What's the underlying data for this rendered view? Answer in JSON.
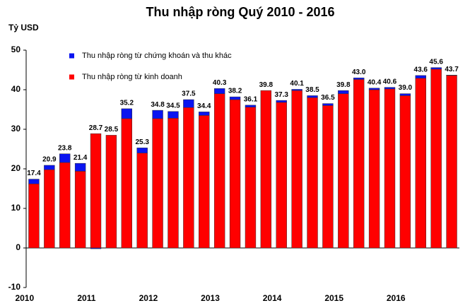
{
  "chart_data": {
    "type": "stacked-bar",
    "title": "Thu nhập ròng Quý 2010 - 2016",
    "y_label": "Tỷ USD",
    "categories": [
      "2010",
      null,
      null,
      null,
      "2011",
      null,
      null,
      null,
      "2012",
      null,
      null,
      null,
      "2013",
      null,
      null,
      null,
      "2014",
      null,
      null,
      null,
      "2015",
      null,
      null,
      null,
      "2016",
      null,
      null,
      null
    ],
    "series": [
      {
        "name": "Thu nhập ròng từ kinh doanh",
        "color": "#ff0000",
        "values": [
          16.2,
          19.8,
          21.6,
          19.4,
          28.9,
          28.5,
          32.7,
          24.0,
          32.7,
          32.8,
          35.5,
          33.5,
          39.0,
          37.5,
          35.6,
          39.8,
          36.8,
          39.8,
          38.0,
          36.0,
          39.0,
          42.6,
          40.0,
          40.2,
          38.5,
          42.9,
          45.2,
          43.6
        ]
      },
      {
        "name": "Thu nhập ròng từ chứng khoán và thu khác",
        "color": "#0a14f0",
        "values": [
          1.2,
          1.1,
          2.2,
          2.0,
          -0.2,
          0.0,
          2.5,
          1.3,
          2.1,
          1.7,
          2.0,
          0.9,
          1.3,
          0.7,
          0.5,
          0.0,
          0.5,
          0.3,
          0.5,
          0.5,
          0.8,
          0.4,
          0.4,
          0.4,
          0.5,
          0.7,
          0.4,
          0.1
        ]
      }
    ],
    "total_labels": [
      "17.4",
      "20.9",
      "23.8",
      "21.4",
      "28.7",
      "28.5",
      "35.2",
      "25.3",
      "34.8",
      "34.5",
      "37.5",
      "34.4",
      "40.3",
      "38.2",
      "36.1",
      "39.8",
      "37.3",
      "40.1",
      "38.5",
      "36.5",
      "39.8",
      "43.0",
      "40.4",
      "40.6",
      "39.0",
      "43.6",
      "45.6",
      "43.7"
    ],
    "ylim": [
      -10,
      50
    ],
    "yticks": [
      -10,
      0,
      10,
      20,
      30,
      40,
      50
    ],
    "grid": false
  }
}
